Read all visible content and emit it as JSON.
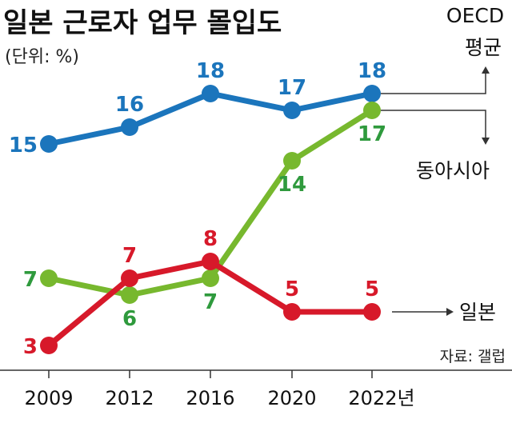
{
  "chart_data": {
    "type": "line",
    "title": "일본 근로자 업무 몰입도",
    "subtitle": "(단위: %)",
    "source": "자료: 갤럽",
    "categories": [
      "2009",
      "2012",
      "2016",
      "2020",
      "2022년"
    ],
    "x": [
      2009,
      2012,
      2016,
      2020,
      2022
    ],
    "series": [
      {
        "name": "OECD 평균",
        "name_lines": [
          "OECD",
          "평균"
        ],
        "values": [
          15,
          16,
          18,
          17,
          18
        ],
        "color": "#1b75bc",
        "label_color": "#1b75bc",
        "arrow": "up"
      },
      {
        "name": "동아시아",
        "name_lines": [
          "동아시아"
        ],
        "values": [
          7,
          6,
          7,
          14,
          17
        ],
        "color": "#77b82e",
        "label_color": "#2f9a3d",
        "arrow": "down"
      },
      {
        "name": "일본",
        "name_lines": [
          "일본"
        ],
        "values": [
          3,
          7,
          8,
          5,
          5
        ],
        "color": "#d7192a",
        "label_color": "#d7192a",
        "arrow": "right"
      }
    ],
    "grid": false,
    "legend": "right, inline labels with arrows"
  }
}
